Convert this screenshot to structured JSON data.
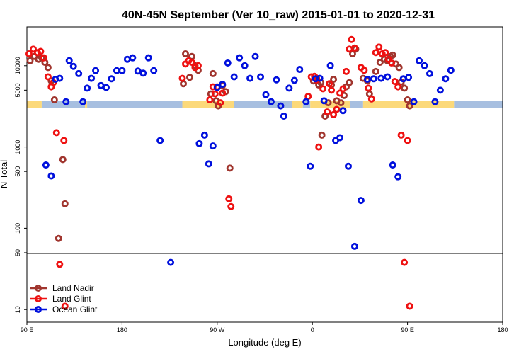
{
  "chart_data": {
    "type": "scatter",
    "title": "40N-45N September (Ver 10_raw)   2015-01-01 to 2020-12-31",
    "xlabel": "Longitude (deg E)",
    "ylabel": "N Total",
    "x_scale": "longitude-wrapped",
    "x_range_deg": [
      90,
      450
    ],
    "x_ticks": [
      {
        "value": 90,
        "label": "90 E"
      },
      {
        "value": 180,
        "label": "180"
      },
      {
        "value": 270,
        "label": "90 W"
      },
      {
        "value": 360,
        "label": "0"
      },
      {
        "value": 450,
        "label": "90 E"
      },
      {
        "value": 540,
        "label": "180"
      }
    ],
    "x_display_range": [
      90,
      540
    ],
    "y_scale": "log",
    "ylim": [
      7,
      30000
    ],
    "y_ticks": [
      10,
      50,
      100,
      500,
      1000,
      5000,
      10000
    ],
    "y_break_value": 50,
    "band": {
      "y_low": 3000,
      "y_high": 3700,
      "land_color": "#fcd97a",
      "ocean_color": "#a7bfe0",
      "segments": [
        {
          "x0": 90,
          "x1": 104,
          "kind": "land"
        },
        {
          "x0": 104,
          "x1": 145,
          "kind": "ocean"
        },
        {
          "x0": 145,
          "x1": 147,
          "kind": "land"
        },
        {
          "x0": 147,
          "x1": 237,
          "kind": "ocean"
        },
        {
          "x0": 237,
          "x1": 286,
          "kind": "land"
        },
        {
          "x0": 286,
          "x1": 341,
          "kind": "ocean"
        },
        {
          "x0": 341,
          "x1": 351,
          "kind": "land"
        },
        {
          "x0": 351,
          "x1": 358,
          "kind": "ocean"
        },
        {
          "x0": 358,
          "x1": 396,
          "kind": "land"
        },
        {
          "x0": 396,
          "x1": 408,
          "kind": "ocean"
        },
        {
          "x0": 408,
          "x1": 494,
          "kind": "land"
        },
        {
          "x0": 494,
          "x1": 540,
          "kind": "ocean"
        }
      ]
    },
    "legend_position": "bottom-left",
    "series": [
      {
        "name": "Land Nadir",
        "color": "#a0352e",
        "points": [
          [
            93,
            11500
          ],
          [
            97,
            13000
          ],
          [
            101,
            12000
          ],
          [
            104,
            12500
          ],
          [
            107,
            11000
          ],
          [
            110,
            9500
          ],
          [
            113,
            6500
          ],
          [
            116,
            3800
          ],
          [
            120,
            75
          ],
          [
            124,
            700
          ],
          [
            126,
            200
          ],
          [
            238,
            6000
          ],
          [
            240,
            14000
          ],
          [
            244,
            7200
          ],
          [
            246,
            13000
          ],
          [
            249,
            10000
          ],
          [
            252,
            8800
          ],
          [
            264,
            4500
          ],
          [
            266,
            8000
          ],
          [
            269,
            3700
          ],
          [
            271,
            3200
          ],
          [
            275,
            5700
          ],
          [
            278,
            4800
          ],
          [
            282,
            550
          ],
          [
            361,
            6500
          ],
          [
            364,
            7000
          ],
          [
            366,
            5800
          ],
          [
            368,
            6200
          ],
          [
            369,
            1400
          ],
          [
            372,
            2400
          ],
          [
            375,
            3500
          ],
          [
            378,
            5800
          ],
          [
            380,
            6800
          ],
          [
            383,
            3700
          ],
          [
            387,
            3500
          ],
          [
            390,
            4300
          ],
          [
            392,
            5500
          ],
          [
            395,
            6200
          ],
          [
            398,
            14000
          ],
          [
            401,
            16000
          ],
          [
            408,
            7000
          ],
          [
            412,
            6500
          ],
          [
            414,
            4500
          ],
          [
            420,
            8500
          ],
          [
            424,
            11000
          ],
          [
            428,
            12000
          ],
          [
            431,
            11500
          ],
          [
            434,
            13000
          ],
          [
            436,
            13500
          ],
          [
            439,
            10500
          ],
          [
            442,
            9500
          ],
          [
            444,
            6300
          ],
          [
            447,
            5300
          ],
          [
            450,
            3800
          ],
          [
            452,
            3200
          ]
        ]
      },
      {
        "name": "Land Glint",
        "color": "#ee1111",
        "points": [
          [
            92,
            14000
          ],
          [
            96,
            16000
          ],
          [
            100,
            14500
          ],
          [
            103,
            15000
          ],
          [
            106,
            12500
          ],
          [
            110,
            7300
          ],
          [
            113,
            5500
          ],
          [
            115,
            6200
          ],
          [
            118,
            1500
          ],
          [
            121,
            36
          ],
          [
            125,
            1200
          ],
          [
            126,
            11
          ],
          [
            237,
            7000
          ],
          [
            240,
            10500
          ],
          [
            243,
            11500
          ],
          [
            246,
            11000
          ],
          [
            249,
            9500
          ],
          [
            252,
            10000
          ],
          [
            263,
            3800
          ],
          [
            266,
            5500
          ],
          [
            268,
            4500
          ],
          [
            270,
            5500
          ],
          [
            273,
            3500
          ],
          [
            275,
            4600
          ],
          [
            281,
            230
          ],
          [
            283,
            185
          ],
          [
            356,
            4200
          ],
          [
            359,
            7300
          ],
          [
            362,
            7400
          ],
          [
            364,
            6700
          ],
          [
            366,
            1000
          ],
          [
            370,
            5200
          ],
          [
            374,
            2700
          ],
          [
            376,
            6000
          ],
          [
            378,
            5000
          ],
          [
            380,
            2500
          ],
          [
            383,
            2900
          ],
          [
            386,
            4600
          ],
          [
            389,
            5200
          ],
          [
            392,
            8500
          ],
          [
            395,
            16000
          ],
          [
            397,
            21000
          ],
          [
            400,
            16500
          ],
          [
            406,
            9500
          ],
          [
            409,
            8800
          ],
          [
            413,
            5300
          ],
          [
            416,
            3900
          ],
          [
            420,
            14500
          ],
          [
            423,
            17000
          ],
          [
            426,
            14000
          ],
          [
            429,
            14500
          ],
          [
            432,
            12000
          ],
          [
            435,
            10800
          ],
          [
            438,
            6400
          ],
          [
            441,
            5500
          ],
          [
            444,
            1400
          ],
          [
            447,
            38
          ],
          [
            450,
            1200
          ],
          [
            452,
            11
          ]
        ]
      },
      {
        "name": "Ocean Glint",
        "color": "#0010dd",
        "points": [
          [
            108,
            600
          ],
          [
            113,
            440
          ],
          [
            117,
            6800
          ],
          [
            121,
            7000
          ],
          [
            127,
            3600
          ],
          [
            130,
            11500
          ],
          [
            134,
            9800
          ],
          [
            139,
            8000
          ],
          [
            143,
            3600
          ],
          [
            147,
            5300
          ],
          [
            151,
            7000
          ],
          [
            155,
            8700
          ],
          [
            160,
            5700
          ],
          [
            165,
            5400
          ],
          [
            170,
            6900
          ],
          [
            175,
            8700
          ],
          [
            180,
            8700
          ],
          [
            185,
            12000
          ],
          [
            190,
            12500
          ],
          [
            195,
            8600
          ],
          [
            200,
            8100
          ],
          [
            205,
            12500
          ],
          [
            210,
            8700
          ],
          [
            216,
            1200
          ],
          [
            226,
            38
          ],
          [
            253,
            1100
          ],
          [
            258,
            1400
          ],
          [
            262,
            620
          ],
          [
            266,
            1030
          ],
          [
            270,
            5400
          ],
          [
            275,
            5900
          ],
          [
            280,
            10800
          ],
          [
            286,
            7300
          ],
          [
            291,
            12500
          ],
          [
            296,
            10000
          ],
          [
            301,
            7000
          ],
          [
            306,
            13000
          ],
          [
            311,
            7300
          ],
          [
            316,
            4400
          ],
          [
            321,
            3600
          ],
          [
            326,
            6700
          ],
          [
            330,
            3200
          ],
          [
            333,
            2400
          ],
          [
            338,
            5300
          ],
          [
            343,
            6600
          ],
          [
            348,
            9000
          ],
          [
            354,
            3600
          ],
          [
            358,
            580
          ],
          [
            363,
            6900
          ],
          [
            367,
            7000
          ],
          [
            371,
            3700
          ],
          [
            377,
            10000
          ],
          [
            382,
            1200
          ],
          [
            386,
            1300
          ],
          [
            389,
            2800
          ],
          [
            394,
            580
          ],
          [
            400,
            60
          ],
          [
            406,
            220
          ],
          [
            412,
            6800
          ],
          [
            418,
            6900
          ],
          [
            425,
            7000
          ],
          [
            431,
            7300
          ],
          [
            436,
            600
          ],
          [
            441,
            430
          ],
          [
            446,
            6900
          ],
          [
            451,
            7200
          ],
          [
            456,
            3600
          ],
          [
            461,
            11500
          ],
          [
            466,
            10000
          ],
          [
            471,
            8000
          ],
          [
            476,
            3600
          ],
          [
            481,
            5000
          ],
          [
            486,
            6900
          ],
          [
            491,
            8800
          ]
        ]
      }
    ]
  }
}
